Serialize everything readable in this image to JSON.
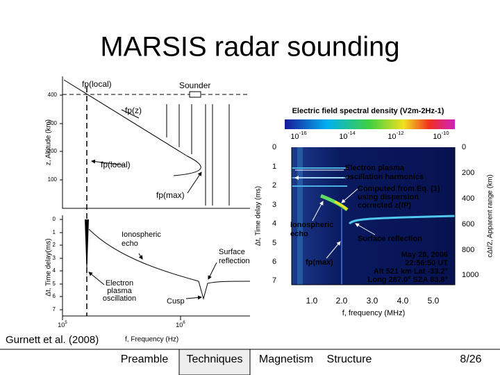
{
  "title": "MARSIS radar sounding",
  "citation": "Gurnett et al. (2008)",
  "nav": {
    "items": [
      "Preamble",
      "Techniques",
      "Magnetism",
      "Structure"
    ],
    "active": 1
  },
  "page_number": "8/26",
  "left_figure": {
    "top_panel": {
      "y_axis_label": "z, Altitude (km)",
      "yticks": [
        "400",
        "300",
        "200",
        "100"
      ],
      "labels": {
        "fp_local_top": "fp(local)",
        "sounder": "Sounder",
        "fp_z": "fp(z)",
        "fp_local": "fp(local)",
        "fp_max": "fp(max)"
      }
    },
    "bottom_panel": {
      "y_axis_label": "Δt, Time delay(ms)",
      "yticks": [
        "0",
        "1",
        "2",
        "3",
        "4",
        "5",
        "6",
        "7"
      ],
      "labels": {
        "ionospheric_echo": [
          "Ionospheric",
          "echo"
        ],
        "surface_reflection": [
          "Surface",
          "reflection"
        ],
        "electron_plasma_oscillation": [
          "Electron",
          "plasma",
          "oscillation"
        ],
        "cusp": "Cusp"
      }
    },
    "xticks": [
      {
        "base": "10",
        "exp": "5"
      },
      {
        "base": "10",
        "exp": "6"
      }
    ],
    "x_axis_label": "f, Frequency (Hz)"
  },
  "right_figure": {
    "colorbar_title": "Electric field spectral density (V2m-2Hz-1)",
    "colorbar_ticks": [
      {
        "base": "10",
        "exp": "-16"
      },
      {
        "base": "10",
        "exp": "-14"
      },
      {
        "base": "10",
        "exp": "-12"
      },
      {
        "base": "10",
        "exp": "-10"
      }
    ],
    "y_axis_label": "Δt, Time delay (ms)",
    "yticks": [
      "0",
      "1",
      "2",
      "3",
      "4",
      "5",
      "6",
      "7"
    ],
    "y2_axis_label": "cΔt/2, Apparent range (km)",
    "y2ticks": [
      "0",
      "200",
      "400",
      "600",
      "800",
      "1000"
    ],
    "xticks": [
      "1.0",
      "2.0",
      "3.0",
      "4.0",
      "5.0"
    ],
    "x_axis_label": "f, frequency (MHz)",
    "annotations": {
      "harmonics": [
        "Electron plasma",
        "oscillation harmonics"
      ],
      "computed": [
        "Computed from Eq. (1)",
        "using dispersion",
        "corrected z(fP)"
      ],
      "ionospheric_echo": [
        "Ionospheric",
        "echo"
      ],
      "surface_reflection": "Surface reflection",
      "fp_max": "fp(max)",
      "info": [
        "May 28, 2006",
        "22:56:50 UT",
        "Alt  521 km  Lat -33.2°",
        "Long  287.0°  SZA 83.8°"
      ]
    }
  }
}
